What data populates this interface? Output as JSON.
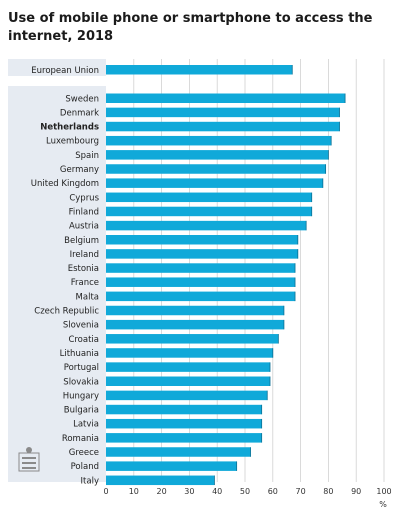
{
  "chart_data": {
    "type": "bar",
    "orientation": "horizontal",
    "title": "Use of mobile phone or smartphone to access the internet, 2018",
    "xlabel": "%",
    "xlim": [
      0,
      100
    ],
    "x_ticks": [
      "0",
      "10",
      "20",
      "30",
      "40",
      "50",
      "60",
      "70",
      "80",
      "90",
      "100"
    ],
    "grid": true,
    "bar_color": "#10a9d9",
    "panel_color": "#e6ebf2",
    "highlighted": "Netherlands",
    "categories": [
      "European Union",
      "Sweden",
      "Denmark",
      "Netherlands",
      "Luxembourg",
      "Spain",
      "Germany",
      "United Kingdom",
      "Cyprus",
      "Finland",
      "Austria",
      "Belgium",
      "Ireland",
      "Estonia",
      "France",
      "Malta",
      "Czech Republic",
      "Slovenia",
      "Croatia",
      "Lithuania",
      "Portugal",
      "Slovakia",
      "Hungary",
      "Bulgaria",
      "Latvia",
      "Romania",
      "Greece",
      "Poland",
      "Italy"
    ],
    "values": [
      67,
      86,
      84,
      84,
      81,
      80,
      79,
      78,
      74,
      74,
      72,
      69,
      69,
      68,
      68,
      68,
      64,
      64,
      62,
      60,
      59,
      59,
      58,
      56,
      56,
      56,
      52,
      47,
      39
    ]
  }
}
